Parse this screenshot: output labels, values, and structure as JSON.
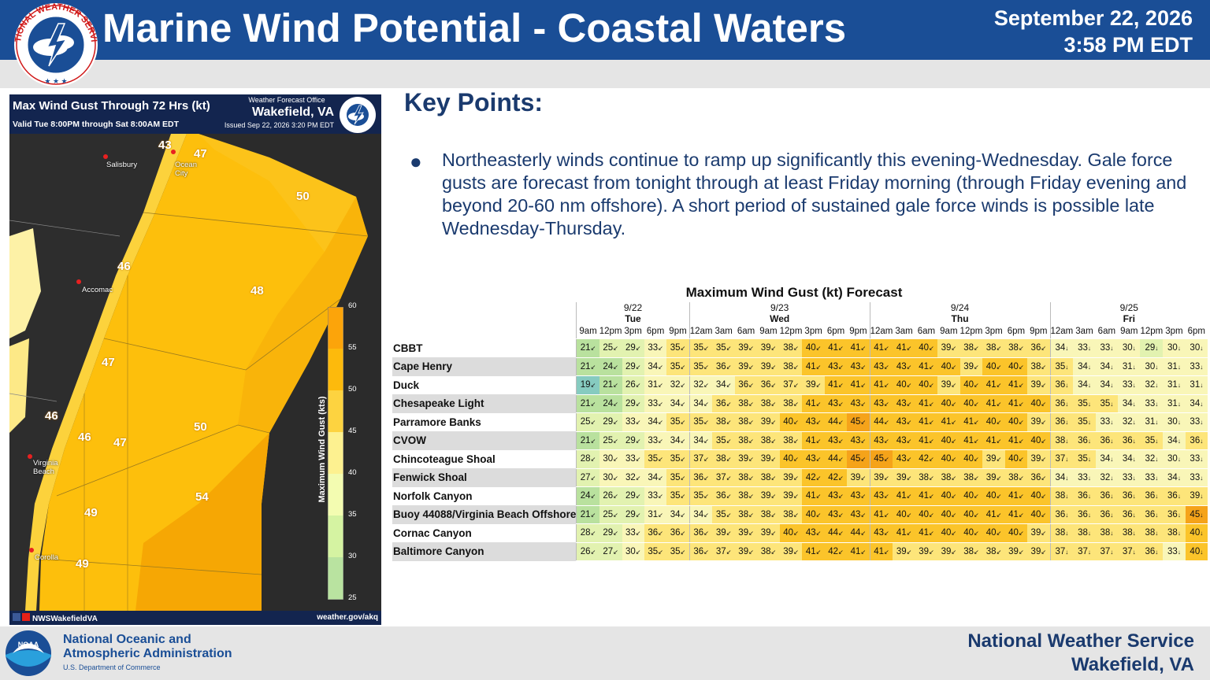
{
  "header": {
    "title": "Marine Wind Potential - Coastal Waters",
    "date": "September 22, 2026",
    "time": "3:58 PM EDT",
    "logo_text": "NATIONAL WEATHER SERVICE",
    "bg_color": "#1a4e96"
  },
  "map": {
    "title": "Max Wind Gust Through 72 Hrs (kt)",
    "valid": "Valid Tue 8:00PM through Sat 8:00AM EDT",
    "wfo_label": "Weather Forecast Office",
    "wfo_name": "Wakefield, VA",
    "issued": "Issued Sep 22, 2026 3:20 PM EDT",
    "zone_values": [
      "43",
      "47",
      "50",
      "46",
      "48",
      "47",
      "46",
      "46",
      "47",
      "50",
      "54",
      "49",
      "49"
    ],
    "cities": [
      "Salisbury",
      "Ocean City",
      "Accomac",
      "Virginia Beach",
      "Corolla"
    ],
    "colorbar_title": "Maximum Wind Gust (kts)",
    "colorbar_ticks": [
      "60",
      "55",
      "50",
      "45",
      "40",
      "35",
      "30",
      "25"
    ],
    "social": "NWSWakefieldVA",
    "website": "weather.gov/akq"
  },
  "key_points": {
    "heading": "Key Points:",
    "bullet": "Northeasterly winds continue to ramp up significantly this evening-Wednesday. Gale force gusts are forecast from tonight through at least Friday morning (through Friday evening and beyond 20-60 nm offshore). A short period of sustained gale force winds is possible late Wednesday-Thursday."
  },
  "gust_table": {
    "title": "Maximum Wind Gust (kt) Forecast",
    "days": [
      {
        "date": "9/22",
        "name": "Tue",
        "span": 5
      },
      {
        "date": "9/23",
        "name": "Wed",
        "span": 8
      },
      {
        "date": "9/24",
        "name": "Thu",
        "span": 8
      },
      {
        "date": "9/25",
        "name": "Fri",
        "span": 7
      }
    ],
    "hours": [
      "9am",
      "12pm",
      "3pm",
      "6pm",
      "9pm",
      "12am",
      "3am",
      "6am",
      "9am",
      "12pm",
      "3pm",
      "6pm",
      "9pm",
      "12am",
      "3am",
      "6am",
      "9am",
      "12pm",
      "3pm",
      "6pm",
      "9pm",
      "12am",
      "3am",
      "6am",
      "9am",
      "12pm",
      "3pm",
      "6pm"
    ],
    "rows": [
      {
        "name": "CBBT",
        "values": [
          21,
          25,
          29,
          33,
          35,
          35,
          35,
          39,
          39,
          38,
          40,
          41,
          41,
          41,
          41,
          40,
          39,
          38,
          38,
          38,
          36,
          34,
          33,
          33,
          30,
          29,
          30,
          30
        ]
      },
      {
        "name": "Cape Henry",
        "values": [
          21,
          24,
          29,
          34,
          35,
          35,
          36,
          39,
          39,
          38,
          41,
          43,
          43,
          43,
          43,
          41,
          40,
          39,
          40,
          40,
          38,
          35,
          34,
          34,
          31,
          30,
          31,
          33
        ]
      },
      {
        "name": "Duck",
        "values": [
          19,
          21,
          26,
          31,
          32,
          32,
          34,
          36,
          36,
          37,
          39,
          41,
          41,
          41,
          40,
          40,
          39,
          40,
          41,
          41,
          39,
          36,
          34,
          34,
          33,
          32,
          31,
          31
        ]
      },
      {
        "name": "Chesapeake Light",
        "values": [
          21,
          24,
          29,
          33,
          34,
          34,
          36,
          38,
          38,
          38,
          41,
          43,
          43,
          43,
          43,
          41,
          40,
          40,
          41,
          41,
          40,
          36,
          35,
          35,
          34,
          33,
          31,
          34
        ]
      },
      {
        "name": "Parramore Banks",
        "values": [
          25,
          29,
          33,
          34,
          35,
          35,
          38,
          38,
          39,
          40,
          43,
          44,
          45,
          44,
          43,
          41,
          41,
          41,
          40,
          40,
          39,
          36,
          35,
          33,
          32,
          31,
          30,
          33
        ]
      },
      {
        "name": "CVOW",
        "values": [
          21,
          25,
          29,
          33,
          34,
          34,
          35,
          38,
          38,
          38,
          41,
          43,
          43,
          43,
          43,
          41,
          40,
          41,
          41,
          41,
          40,
          38,
          36,
          36,
          36,
          35,
          34,
          36
        ]
      },
      {
        "name": "Chincoteague Shoal",
        "values": [
          28,
          30,
          33,
          35,
          35,
          37,
          38,
          39,
          39,
          40,
          43,
          44,
          45,
          45,
          43,
          42,
          40,
          40,
          39,
          40,
          39,
          37,
          35,
          34,
          34,
          32,
          30,
          33
        ]
      },
      {
        "name": "Fenwick Shoal",
        "values": [
          27,
          30,
          32,
          34,
          35,
          36,
          37,
          38,
          38,
          39,
          42,
          42,
          39,
          39,
          39,
          38,
          38,
          38,
          39,
          38,
          36,
          34,
          33,
          32,
          33,
          33,
          34,
          33
        ]
      },
      {
        "name": "Norfolk Canyon",
        "values": [
          24,
          26,
          29,
          33,
          35,
          35,
          36,
          38,
          39,
          39,
          41,
          43,
          43,
          43,
          41,
          41,
          40,
          40,
          40,
          41,
          40,
          38,
          36,
          36,
          36,
          36,
          36,
          39
        ]
      },
      {
        "name": "Buoy 44088/Virginia Beach Offshore",
        "values": [
          21,
          25,
          29,
          31,
          34,
          34,
          35,
          38,
          38,
          38,
          40,
          43,
          43,
          41,
          40,
          40,
          40,
          40,
          41,
          41,
          40,
          36,
          36,
          36,
          36,
          36,
          36,
          45
        ]
      },
      {
        "name": "Cornac Canyon",
        "values": [
          28,
          29,
          33,
          36,
          36,
          36,
          39,
          39,
          39,
          40,
          43,
          44,
          44,
          43,
          41,
          41,
          40,
          40,
          40,
          40,
          39,
          38,
          38,
          38,
          38,
          38,
          38,
          40
        ]
      },
      {
        "name": "Baltimore Canyon",
        "values": [
          26,
          27,
          30,
          35,
          35,
          36,
          37,
          39,
          38,
          39,
          41,
          42,
          41,
          41,
          39,
          39,
          39,
          38,
          38,
          39,
          39,
          37,
          37,
          37,
          37,
          36,
          33,
          40
        ]
      }
    ]
  },
  "footer": {
    "noaa_line1": "National Oceanic and",
    "noaa_line2": "Atmospheric Administration",
    "noaa_dept": "U.S. Department of Commerce",
    "noaa_logo_text": "NOAA",
    "nws_line1": "National Weather Service",
    "nws_line2": "Wakefield, VA"
  }
}
